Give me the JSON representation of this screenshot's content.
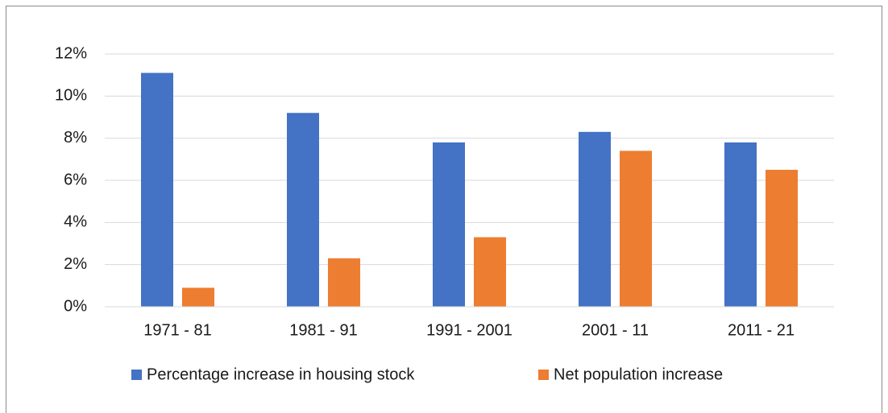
{
  "chart_data": {
    "type": "bar",
    "categories": [
      "1971 - 81",
      "1981 - 91",
      "1991 - 2001",
      "2001 - 11",
      "2011 - 21"
    ],
    "series": [
      {
        "name": "Percentage increase in housing stock",
        "color": "#4472c4",
        "values": [
          11.1,
          9.2,
          7.8,
          8.3,
          7.8
        ]
      },
      {
        "name": "Net population increase",
        "color": "#ed7d31",
        "values": [
          0.9,
          2.3,
          3.3,
          7.4,
          6.5
        ]
      }
    ],
    "ylim": [
      0,
      12
    ],
    "yticks": [
      {
        "value": 0,
        "label": "0%"
      },
      {
        "value": 2,
        "label": "2%"
      },
      {
        "value": 4,
        "label": "4%"
      },
      {
        "value": 6,
        "label": "6%"
      },
      {
        "value": 8,
        "label": "8%"
      },
      {
        "value": 10,
        "label": "10%"
      },
      {
        "value": 12,
        "label": "12%"
      }
    ],
    "grid": true,
    "legend": "bottom"
  }
}
